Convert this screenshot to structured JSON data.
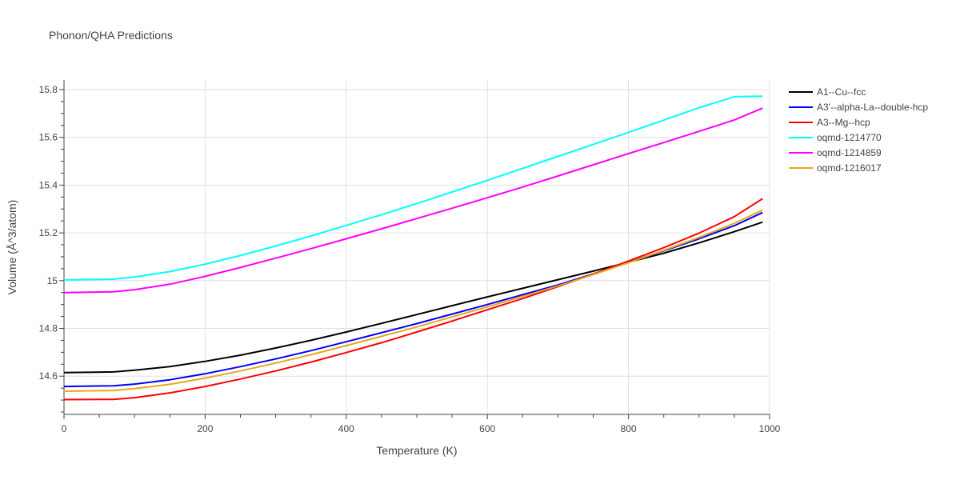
{
  "chart_data": {
    "type": "line",
    "title": "Phonon/QHA Predictions",
    "xlabel": "Temperature (K)",
    "ylabel": "Volume (Å^3/atom)",
    "xlim": [
      0,
      1000
    ],
    "ylim": [
      14.44,
      15.84
    ],
    "xticks": [
      0,
      200,
      400,
      600,
      800,
      1000
    ],
    "xtick_labels": [
      "0",
      "200",
      "400",
      "600",
      "800",
      "1000"
    ],
    "yticks": [
      14.6,
      14.8,
      15.0,
      15.2,
      15.4,
      15.6,
      15.8
    ],
    "ytick_labels": [
      "14.6",
      "14.8",
      "15",
      "15.2",
      "15.4",
      "15.6",
      "15.8"
    ],
    "grid": true,
    "legend_position": "top-right",
    "x": [
      0,
      70,
      100,
      150,
      200,
      250,
      300,
      350,
      400,
      450,
      500,
      550,
      600,
      650,
      700,
      750,
      800,
      850,
      900,
      950,
      990
    ],
    "series": [
      {
        "name": "A1--Cu--fcc",
        "color": "#000000",
        "values": [
          14.615,
          14.618,
          14.625,
          14.64,
          14.662,
          14.688,
          14.718,
          14.75,
          14.785,
          14.821,
          14.858,
          14.895,
          14.932,
          14.968,
          15.004,
          15.04,
          15.077,
          15.115,
          15.158,
          15.205,
          15.245
        ]
      },
      {
        "name": "A3'--alpha-La--double-hcp",
        "color": "#0000ff",
        "values": [
          14.557,
          14.56,
          14.567,
          14.585,
          14.61,
          14.64,
          14.672,
          14.707,
          14.744,
          14.782,
          14.82,
          14.86,
          14.9,
          14.941,
          14.982,
          15.028,
          15.077,
          15.125,
          15.175,
          15.23,
          15.285
        ]
      },
      {
        "name": "A3--Mg--hcp",
        "color": "#ff0000",
        "values": [
          14.502,
          14.503,
          14.51,
          14.53,
          14.557,
          14.588,
          14.622,
          14.659,
          14.699,
          14.74,
          14.785,
          14.831,
          14.878,
          14.925,
          14.975,
          15.027,
          15.082,
          15.138,
          15.199,
          15.268,
          15.343
        ]
      },
      {
        "name": "oqmd-1214770",
        "color": "#00ffff",
        "values": [
          15.003,
          15.006,
          15.015,
          15.038,
          15.069,
          15.105,
          15.145,
          15.187,
          15.231,
          15.276,
          15.323,
          15.371,
          15.42,
          15.47,
          15.52,
          15.57,
          15.621,
          15.672,
          15.724,
          15.77,
          15.772
        ]
      },
      {
        "name": "oqmd-1214859",
        "color": "#ff00ff",
        "values": [
          14.95,
          14.953,
          14.962,
          14.985,
          15.018,
          15.055,
          15.094,
          15.134,
          15.175,
          15.217,
          15.26,
          15.303,
          15.347,
          15.392,
          15.438,
          15.485,
          15.532,
          15.578,
          15.625,
          15.673,
          15.722
        ]
      },
      {
        "name": "oqmd-1216017",
        "color": "#e6a817",
        "values": [
          14.537,
          14.54,
          14.548,
          14.566,
          14.592,
          14.622,
          14.655,
          14.69,
          14.728,
          14.767,
          14.806,
          14.848,
          14.89,
          14.934,
          14.978,
          15.025,
          15.075,
          15.127,
          15.181,
          15.24,
          15.295
        ]
      }
    ]
  }
}
